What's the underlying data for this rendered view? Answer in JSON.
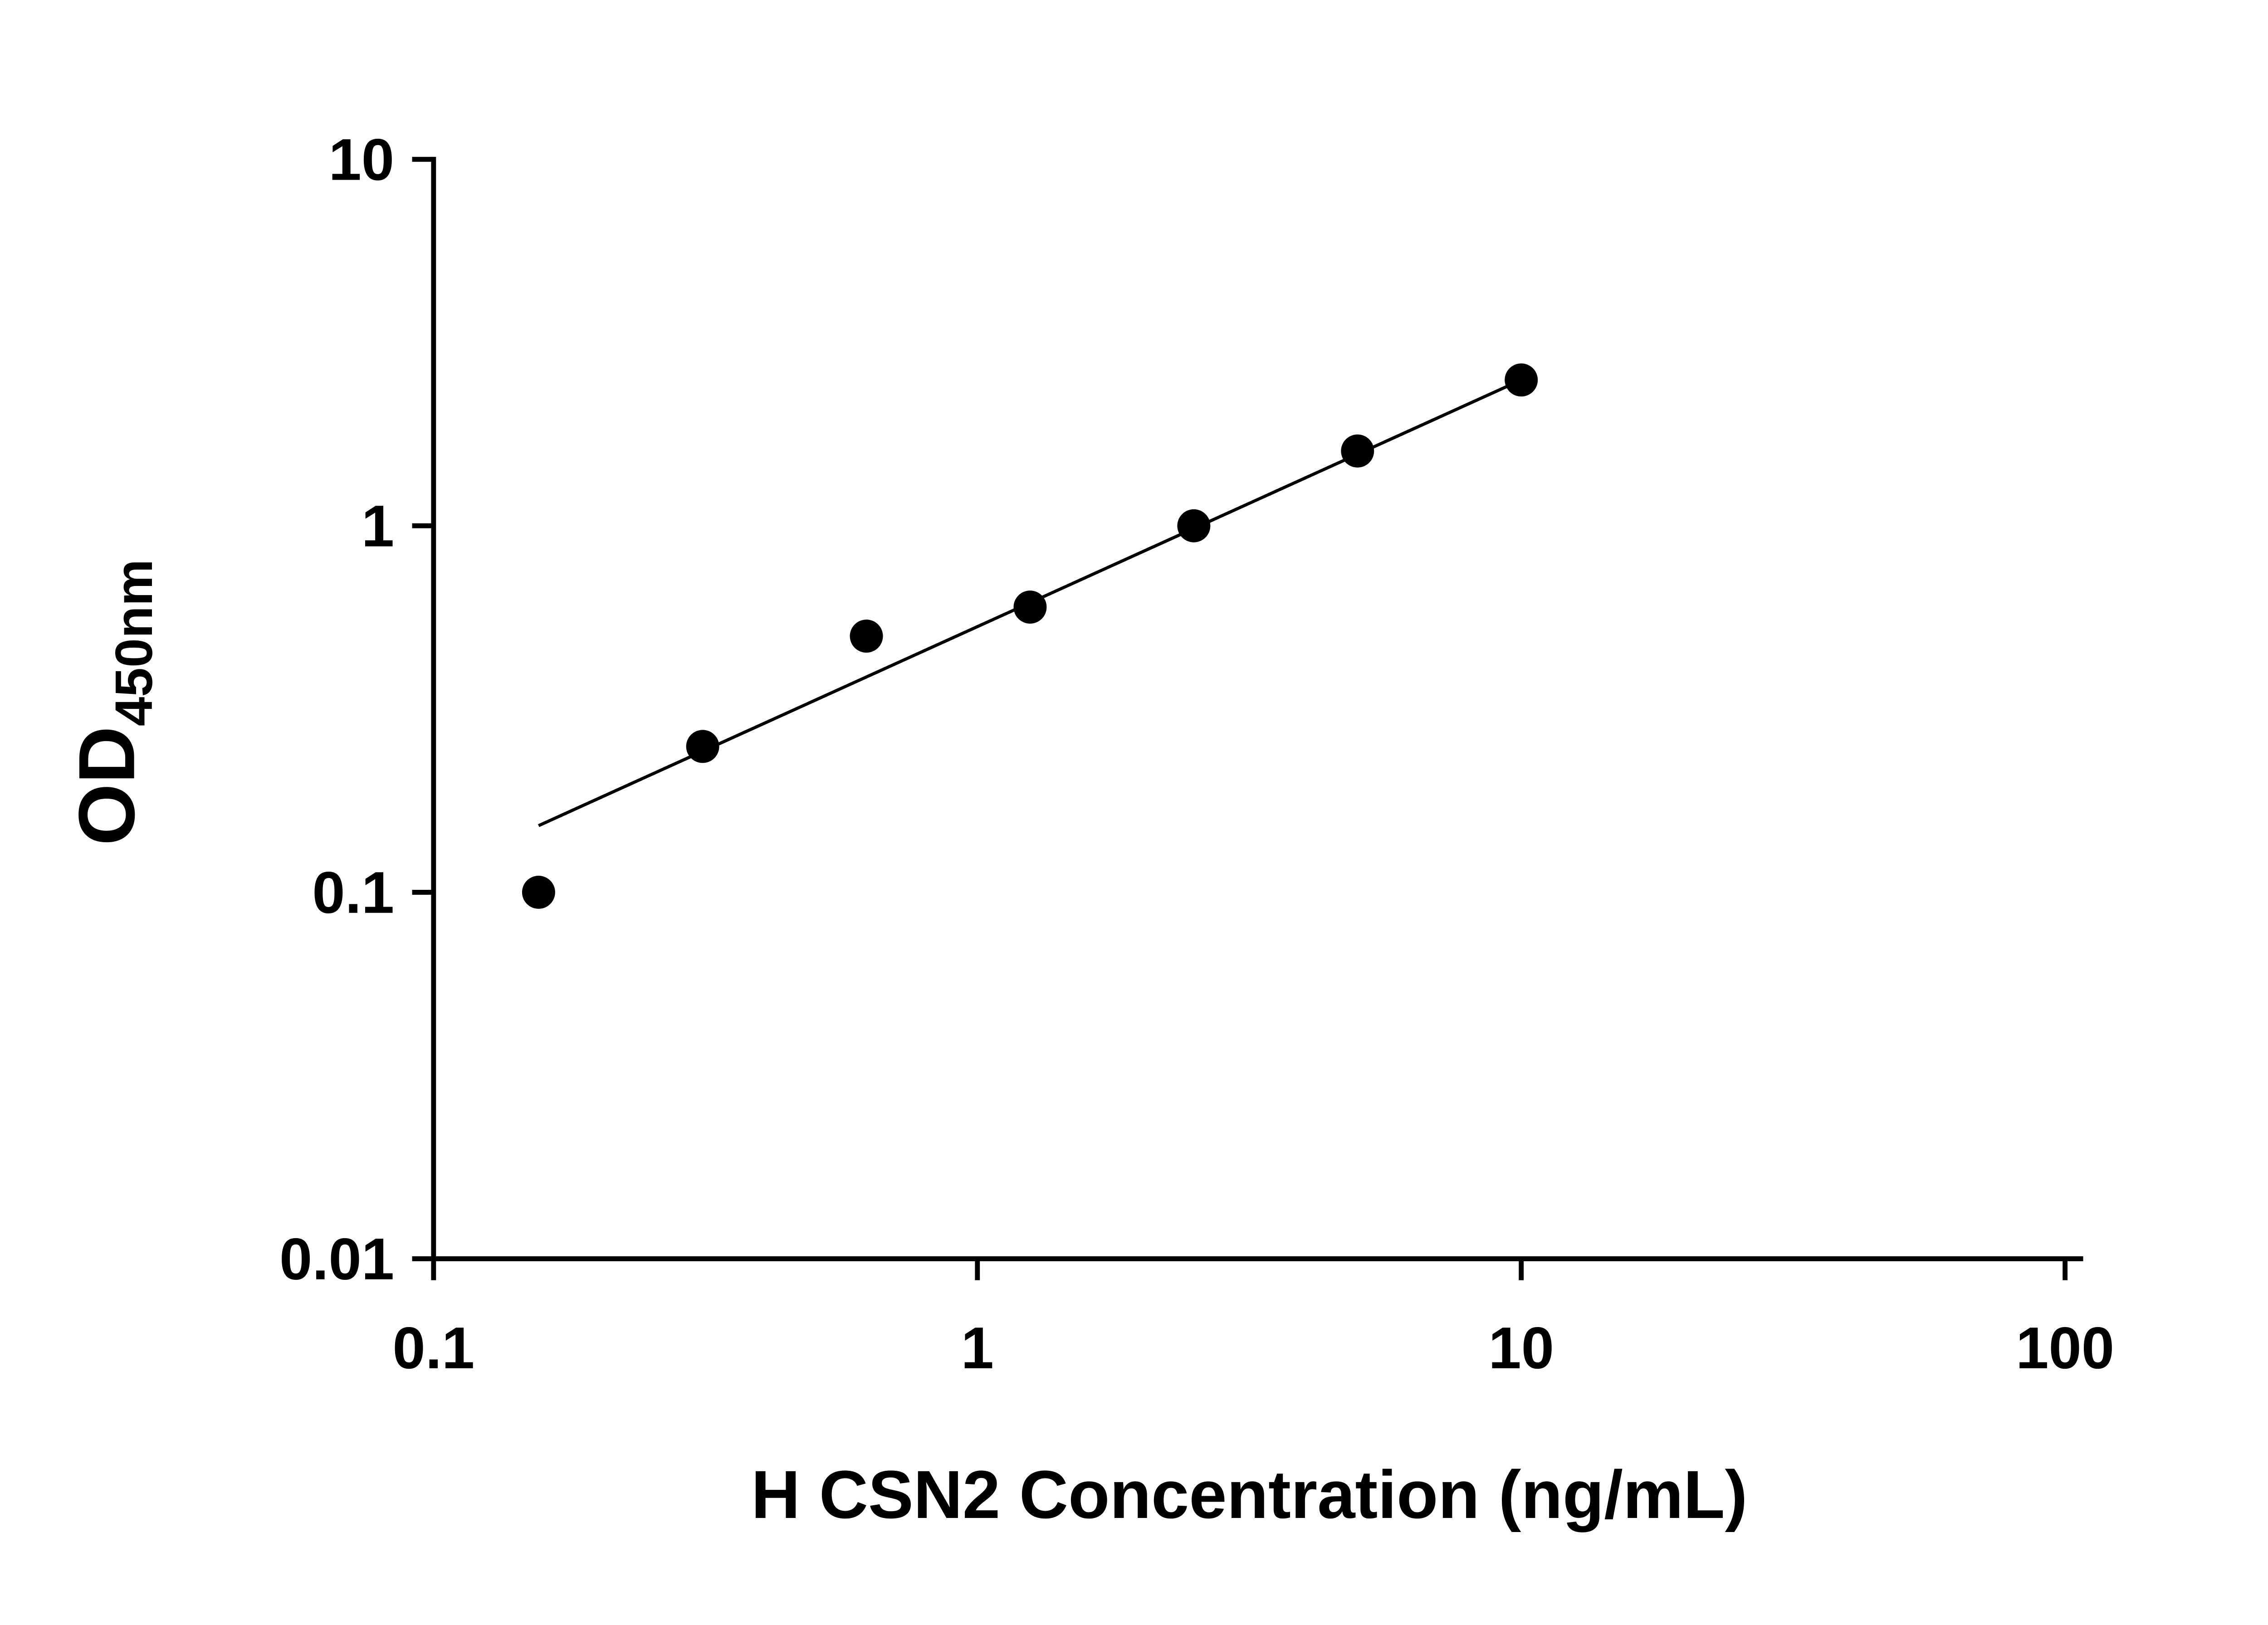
{
  "chart_data": {
    "type": "scatter",
    "title": "",
    "xlabel": "H CSN2 Concentration (ng/mL)",
    "ylabel": "OD450nm",
    "ylabel_main": "OD",
    "ylabel_sub": "450nm",
    "x_scale": "log",
    "y_scale": "log",
    "xlim": [
      0.1,
      100
    ],
    "ylim": [
      0.01,
      10
    ],
    "x_tick_labels": [
      "0.1",
      "1",
      "10",
      "100"
    ],
    "y_tick_labels": [
      "0.01",
      "0.1",
      "1",
      "10"
    ],
    "x": [
      0.156,
      0.3125,
      0.625,
      1.25,
      2.5,
      5,
      10
    ],
    "y": [
      0.1,
      0.25,
      0.5,
      0.6,
      1.0,
      1.6,
      2.5
    ],
    "trend_line": {
      "x1": 0.156,
      "y1": 0.152,
      "x2": 10,
      "y2": 2.5
    },
    "marker_color": "#000000",
    "line_color": "#000000",
    "axis_color": "#000000",
    "background_color": "#ffffff",
    "grid": "off",
    "legend": "none"
  }
}
